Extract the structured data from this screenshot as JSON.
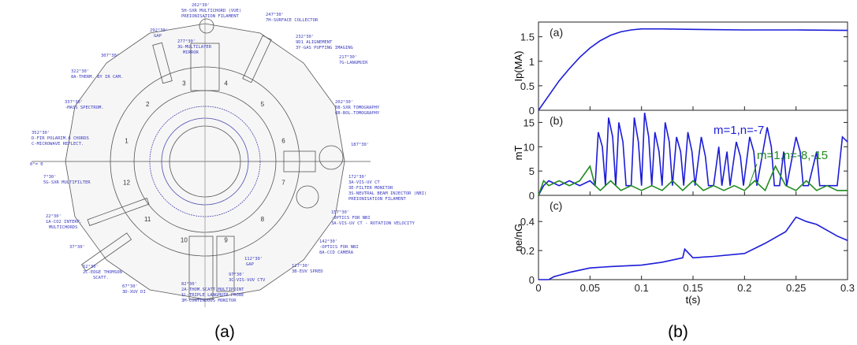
{
  "figure": {
    "captions": [
      "(a)",
      "(b)"
    ]
  },
  "diagram": {
    "labels": [
      "262°30'",
      "5H-SXR MULTICHORD (VUE)",
      "PREIONISATION FILAMENT",
      "247°30'",
      "7H-SURFACE COLLECTOR",
      "292°30'",
      "GAP",
      "277°30'",
      "3G-MULTILAYER",
      "MIRROR",
      "232°30'",
      "9D1 ALIGNEMENT",
      "3Y-GAS PUFFING IMAGING",
      "307°30'",
      "322°30'",
      "8A-THERM. BY IR CAM.",
      "217°30'",
      "7G-LANGMUIR",
      "337°30'",
      "-MASS SPECTROM.",
      "202°30'",
      "5B-SXR TOMOGRAPHY",
      "6B-BOL.TOMOGRAPHY",
      "352°30'",
      "D-FIR POLARIM.6 CHORDS",
      "C-MICROWAVE REFLECT.",
      "187°30'",
      "0°= 0",
      "7°30'",
      "5G-SXR MULTIFILTER",
      "172°30'",
      "3A-VIS-UV CT",
      "3E-FILTER MONITOR",
      "3S-NEUTRAL BEAM INJECTOR (NBI)",
      "PREIONISATION FILAMENT",
      "157°30'",
      "-OPTICS FOR NBI",
      "3A-VIS-UV CT - ROTATION VELOCITY",
      "22°30'",
      "1A-CO2 INTERF.",
      "MULTICHORDS",
      "142°30'",
      "-OPTICS FOR NBI",
      "8A-CCD CAMERA",
      "37°30'",
      "52°30'",
      "2C-EDGE THOMSON",
      "SCATT.",
      "67°30'",
      "3D-XUV DI",
      "127°30'",
      "3B-EUV SPRED",
      "112°30'",
      "GAP",
      "97°30'",
      "3C-VIS-VUV CTV",
      "82°30'",
      "2A-THOM.SCATT.MULTIPOINT",
      "1L-TRIPLE LANGMUIR PROBE",
      "3M-CONTINUOUS MONITOR"
    ],
    "ports": [
      "1",
      "2",
      "3",
      "4",
      "5",
      "6",
      "7",
      "8",
      "9",
      "10",
      "11",
      "12"
    ]
  },
  "chart_data": [
    {
      "type": "line",
      "panel_label": "(a)",
      "ylabel": "Ip(MA)",
      "color": "#1c1cd8",
      "x": [
        0,
        0.005,
        0.01,
        0.02,
        0.03,
        0.04,
        0.05,
        0.06,
        0.07,
        0.08,
        0.09,
        0.1,
        0.12,
        0.15,
        0.2,
        0.25,
        0.3
      ],
      "values": [
        0,
        0.15,
        0.3,
        0.6,
        0.85,
        1.08,
        1.27,
        1.42,
        1.53,
        1.6,
        1.64,
        1.66,
        1.66,
        1.65,
        1.64,
        1.64,
        1.63
      ],
      "xlim": [
        0,
        0.3
      ],
      "ylim": [
        0,
        1.8
      ],
      "yticks": [
        0,
        0.5,
        1,
        1.5
      ]
    },
    {
      "type": "line",
      "panel_label": "(b)",
      "ylabel": "mT",
      "xlim": [
        0,
        0.3
      ],
      "ylim": [
        0,
        17.5
      ],
      "yticks": [
        0,
        5,
        10,
        15
      ],
      "series": [
        {
          "name": "m=1,n=-7",
          "color": "#1c1cd8",
          "x": [
            0,
            0.005,
            0.01,
            0.02,
            0.03,
            0.04,
            0.05,
            0.055,
            0.058,
            0.062,
            0.065,
            0.068,
            0.072,
            0.075,
            0.078,
            0.082,
            0.085,
            0.09,
            0.093,
            0.097,
            0.1,
            0.103,
            0.107,
            0.11,
            0.113,
            0.117,
            0.12,
            0.123,
            0.127,
            0.13,
            0.134,
            0.138,
            0.141,
            0.145,
            0.149,
            0.152,
            0.158,
            0.162,
            0.165,
            0.17,
            0.175,
            0.178,
            0.183,
            0.186,
            0.192,
            0.196,
            0.199,
            0.205,
            0.209,
            0.212,
            0.222,
            0.226,
            0.229,
            0.234,
            0.238,
            0.241,
            0.25,
            0.254,
            0.257,
            0.262,
            0.27,
            0.273,
            0.285,
            0.29,
            0.295,
            0.3
          ],
          "values": [
            0,
            2,
            3,
            2,
            3,
            2,
            3,
            2,
            13,
            10,
            2,
            16,
            12,
            2,
            15,
            11,
            2,
            2,
            16,
            11,
            2,
            17,
            12,
            2,
            13,
            9,
            2,
            15,
            11,
            2,
            12,
            9,
            2,
            13,
            9,
            2,
            12,
            8,
            2,
            2,
            10,
            2,
            9,
            2,
            11,
            8,
            2,
            12,
            9,
            2,
            14,
            10,
            2,
            2,
            9,
            2,
            12,
            9,
            2,
            2,
            9,
            2,
            2,
            2,
            12,
            11
          ]
        },
        {
          "name": "m=1,n=-8,-15",
          "color": "#1f8a1f",
          "x": [
            0,
            0.005,
            0.01,
            0.02,
            0.03,
            0.04,
            0.05,
            0.055,
            0.06,
            0.07,
            0.08,
            0.09,
            0.1,
            0.11,
            0.12,
            0.13,
            0.14,
            0.15,
            0.16,
            0.17,
            0.18,
            0.19,
            0.2,
            0.21,
            0.22,
            0.23,
            0.24,
            0.25,
            0.26,
            0.27,
            0.28,
            0.29,
            0.3
          ],
          "values": [
            0,
            3,
            2,
            3,
            2,
            3,
            6,
            2,
            1,
            3,
            1,
            2,
            1,
            2,
            1,
            3,
            1,
            3,
            1,
            2,
            1,
            2,
            1,
            3,
            1,
            6,
            2,
            1,
            3,
            1,
            2,
            1,
            1
          ]
        }
      ]
    },
    {
      "type": "line",
      "panel_label": "(c)",
      "ylabel": "ne/nG",
      "xlabel": "t(s)",
      "color": "#1c1cd8",
      "x": [
        0,
        0.01,
        0.015,
        0.02,
        0.03,
        0.05,
        0.07,
        0.1,
        0.12,
        0.14,
        0.142,
        0.15,
        0.17,
        0.2,
        0.22,
        0.24,
        0.25,
        0.26,
        0.27,
        0.28,
        0.29,
        0.3
      ],
      "values": [
        0,
        0,
        0.02,
        0.03,
        0.05,
        0.08,
        0.09,
        0.1,
        0.12,
        0.15,
        0.21,
        0.15,
        0.16,
        0.18,
        0.25,
        0.33,
        0.43,
        0.4,
        0.38,
        0.34,
        0.3,
        0.27
      ],
      "xlim": [
        0,
        0.3
      ],
      "xticks": [
        0,
        0.05,
        0.1,
        0.15,
        0.2,
        0.25,
        0.3
      ],
      "ylim": [
        0,
        0.58
      ],
      "yticks": [
        0,
        0.2,
        0.4
      ]
    }
  ]
}
